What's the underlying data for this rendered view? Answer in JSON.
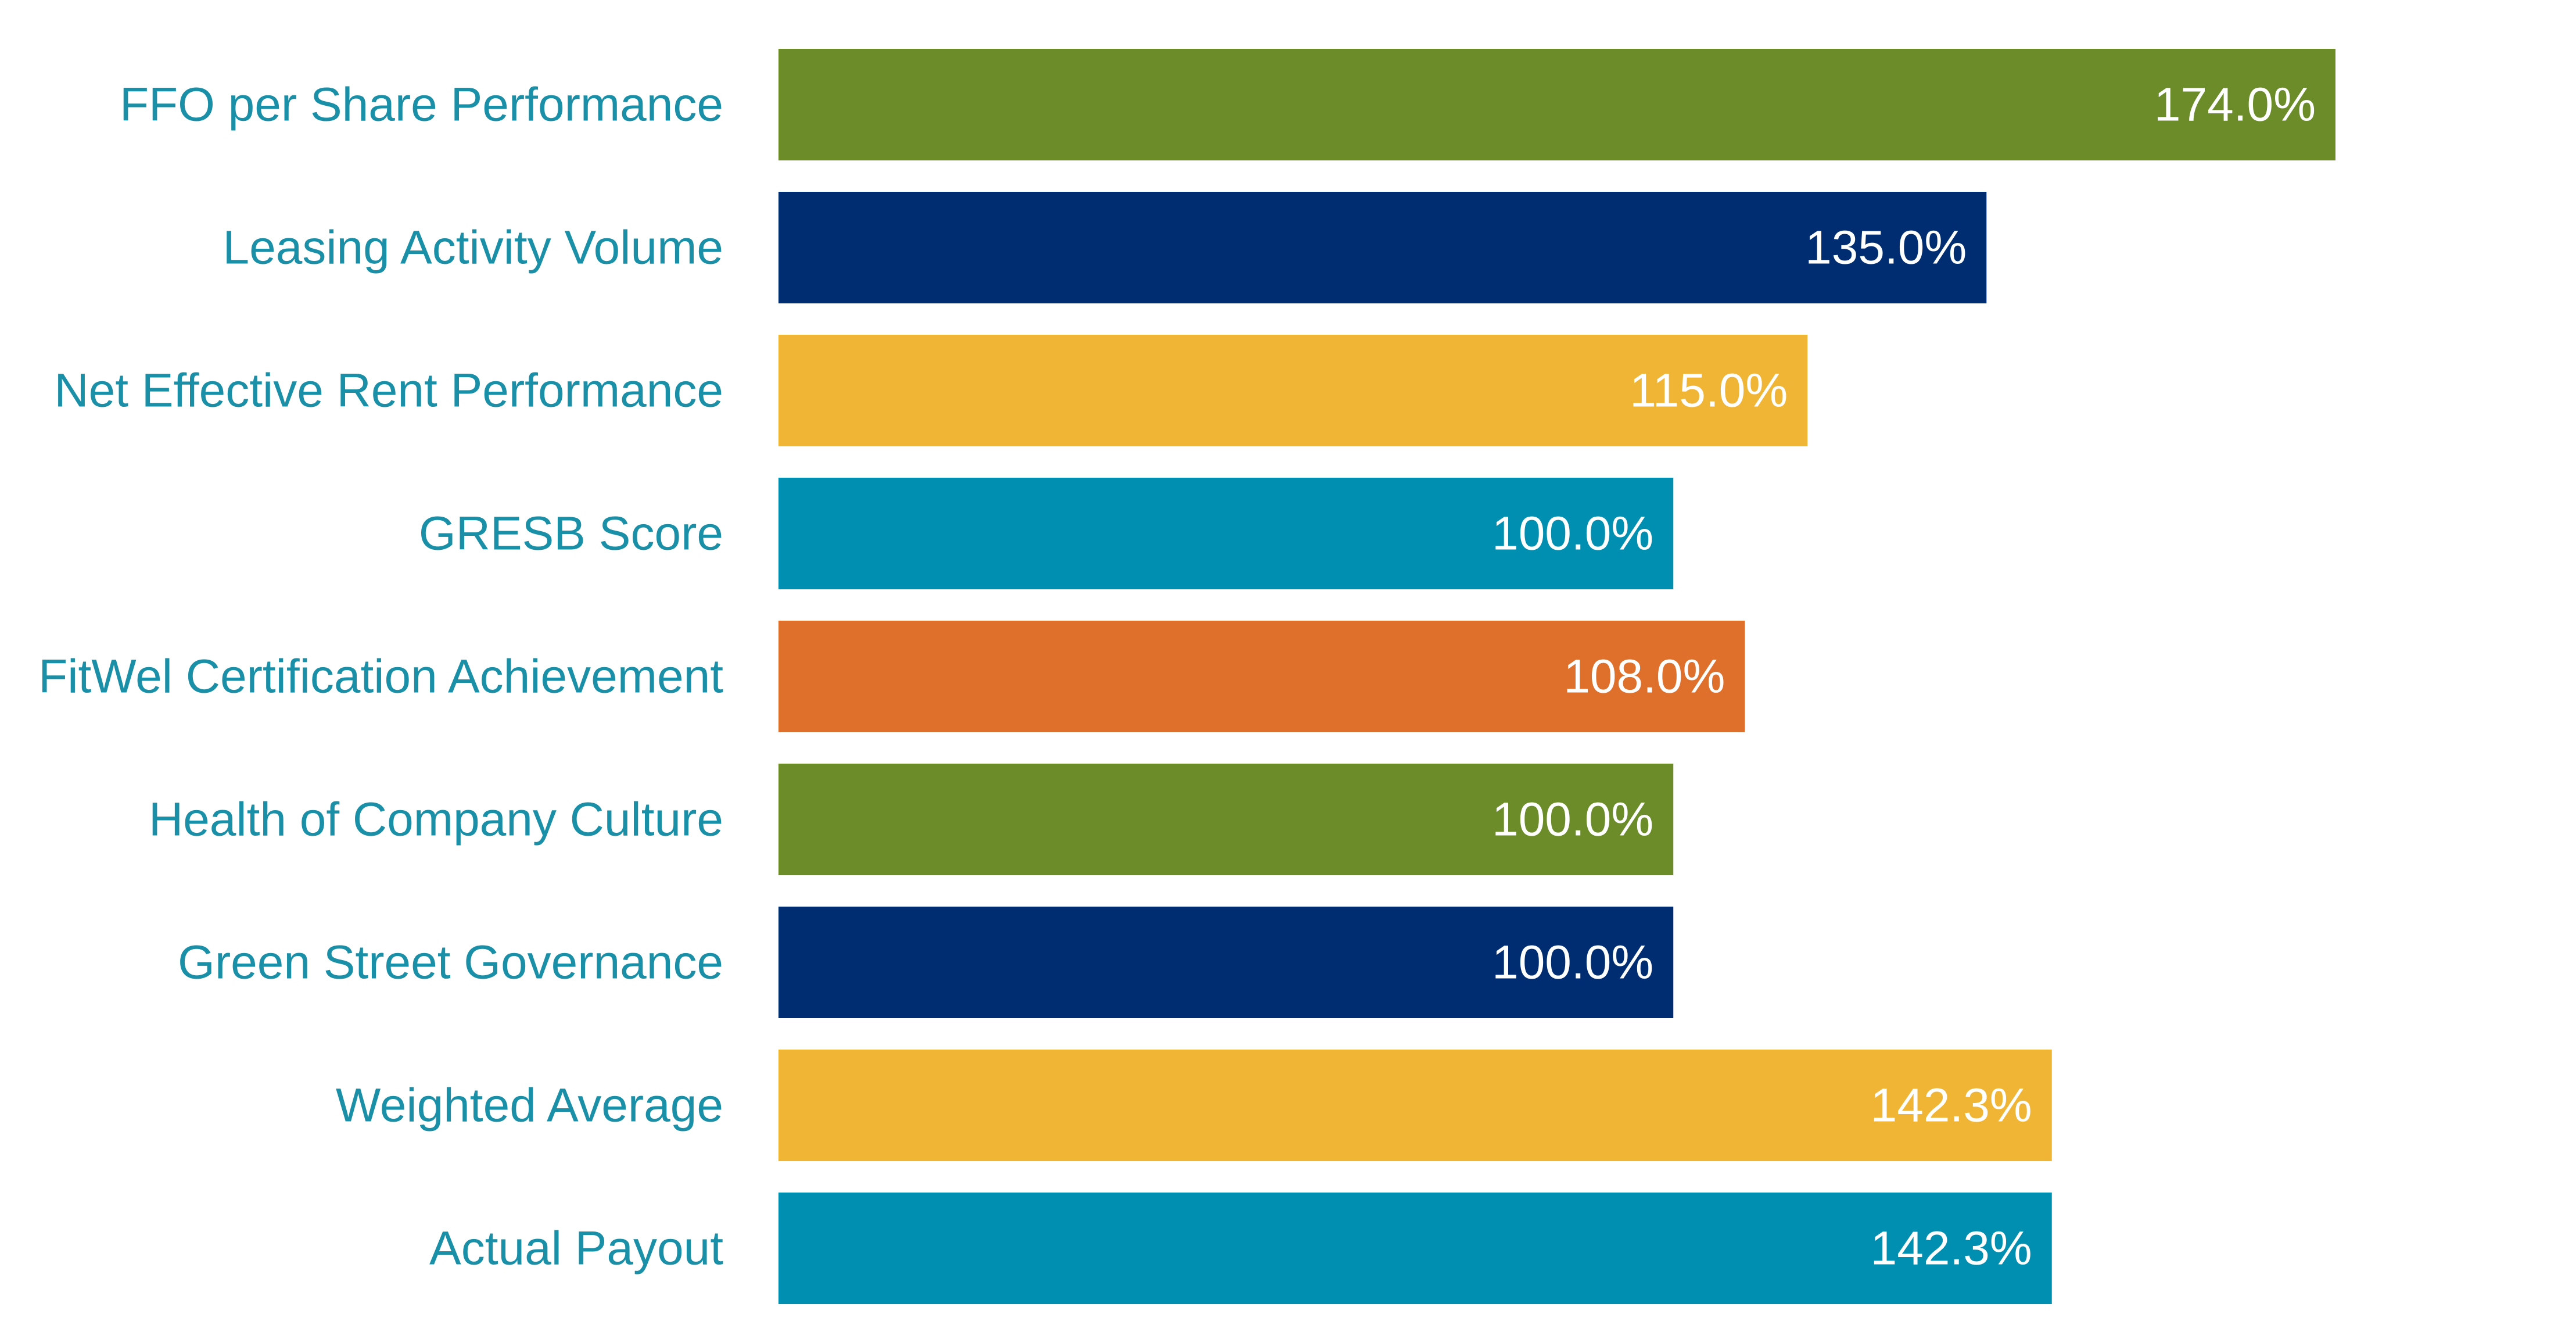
{
  "chart_data": {
    "type": "bar",
    "orientation": "horizontal",
    "title": "",
    "xlabel": "",
    "ylabel": "",
    "xlim": [
      0,
      174
    ],
    "grid": false,
    "legend": "none",
    "categories": [
      "FFO per Share Performance",
      "Leasing Activity Volume",
      "Net Effective Rent Performance",
      "GRESB Score",
      "FitWel Certification Achievement",
      "Health of Company Culture",
      "Green Street Governance",
      "Weighted Average",
      "Actual Payout"
    ],
    "values": [
      174.0,
      135.0,
      115.0,
      100.0,
      108.0,
      100.0,
      100.0,
      142.3,
      142.3
    ],
    "value_labels": [
      "174.0%",
      "135.0%",
      "115.0%",
      "100.0%",
      "108.0%",
      "100.0%",
      "100.0%",
      "142.3%",
      "142.3%"
    ],
    "bar_colors": [
      "#6b8c28",
      "#002d72",
      "#f0b535",
      "#008fb0",
      "#de702b",
      "#6b8c28",
      "#002d72",
      "#f0b535",
      "#008fb0"
    ],
    "label_color": "#1a8fa8",
    "value_label_color": "#ffffff"
  }
}
